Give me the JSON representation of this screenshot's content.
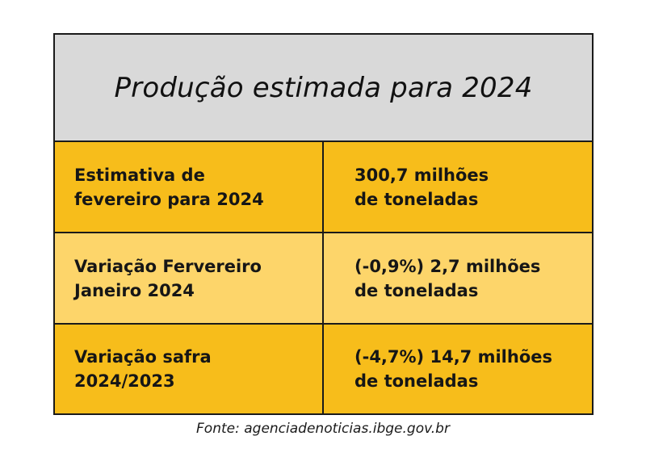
{
  "table": {
    "title": "Produção estimada para 2024",
    "rows": [
      {
        "label": "Estimativa de\nfevereiro para 2024",
        "value": "300,7 milhões\nde toneladas"
      },
      {
        "label": "Variação Fervereiro\nJaneiro 2024",
        "value": "(-0,9%) 2,7 milhões\nde toneladas"
      },
      {
        "label": "Variação safra\n2024/2023",
        "value": "(-4,7%) 14,7 milhões\nde toneladas"
      }
    ]
  },
  "colors": {
    "title_background": "#d9d9d9",
    "row_dark": "#f7bd1b",
    "row_light": "#fdd56a",
    "border": "#1a1a1a"
  },
  "source": "Fonte: agenciadenoticias.ibge.gov.br"
}
